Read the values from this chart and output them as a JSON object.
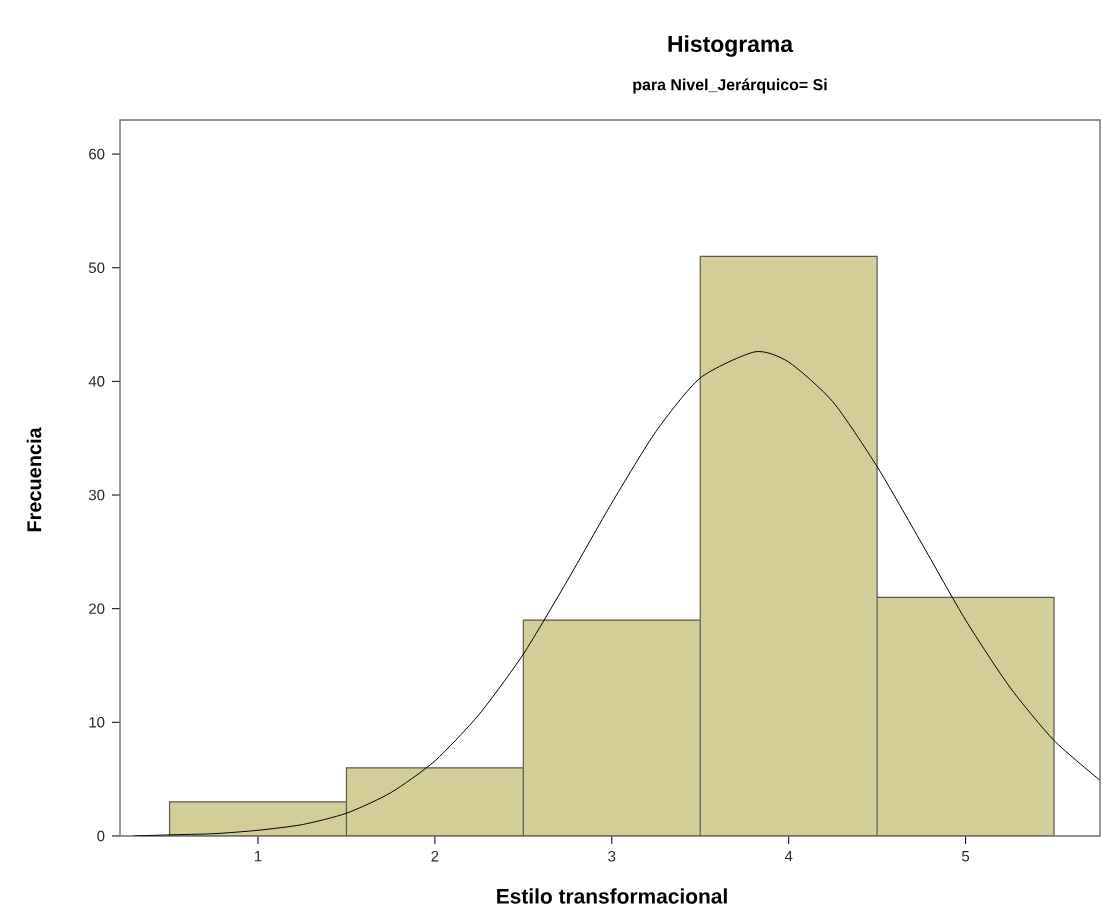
{
  "chart_data": {
    "type": "histogram",
    "title": "Histograma",
    "subtitle": "para Nivel_Jerárquico= Si",
    "xlabel": "Estilo transformacional",
    "ylabel": "Frecuencia",
    "bins": [
      0.5,
      1.5,
      2.5,
      3.5,
      4.5,
      5.5
    ],
    "values": [
      3,
      6,
      19,
      51,
      21
    ],
    "color": "#d3ce98",
    "series": [
      {
        "type": "line",
        "color": "#000000",
        "x": [
          0.3,
          0.5,
          0.75,
          1.0,
          1.25,
          1.5,
          1.75,
          2.0,
          2.25,
          2.5,
          2.75,
          3.0,
          3.25,
          3.5,
          3.81,
          4.0,
          4.25,
          4.5,
          4.75,
          5.0,
          5.25,
          5.5,
          5.76
        ],
        "values": [
          0.0,
          0.1,
          0.2,
          0.5,
          1.0,
          2.0,
          3.8,
          6.6,
          10.7,
          16.0,
          22.5,
          29.3,
          35.6,
          40.3,
          42.6,
          41.7,
          38.2,
          32.5,
          25.8,
          19.0,
          13.1,
          8.4,
          4.9
        ]
      }
    ],
    "xlim": [
      0.22,
      5.76
    ],
    "ylim": [
      0,
      63
    ],
    "xticks": [
      1,
      2,
      3,
      4,
      5
    ],
    "yticks": [
      0,
      10,
      20,
      30,
      40,
      50,
      60
    ]
  }
}
